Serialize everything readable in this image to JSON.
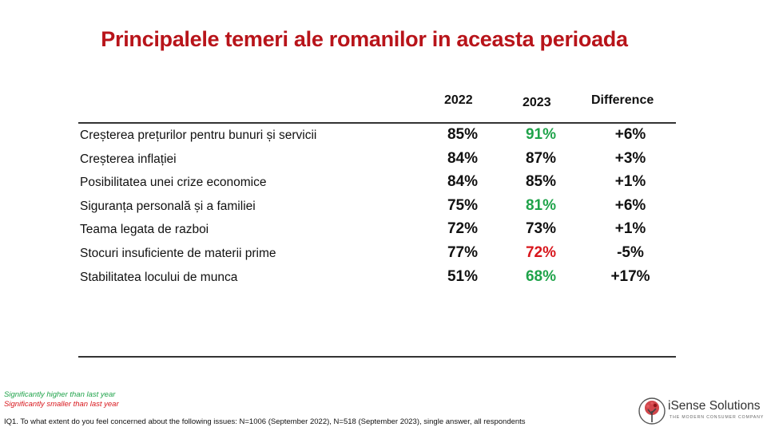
{
  "title": "Principalele temeri ale romanilor in aceasta perioada",
  "headers": {
    "y2022": "2022",
    "y2023": "2023",
    "diff": "Difference"
  },
  "colors": {
    "title": "#b8141a",
    "higher": "#1fa34a",
    "lower": "#d8161c",
    "neutral": "#111111"
  },
  "rows": [
    {
      "label": "Creșterea prețurilor pentru bunuri și servicii",
      "v2022": "85%",
      "v2023": "91%",
      "diff": "+6%",
      "trend": "higher"
    },
    {
      "label": "Creșterea inflației",
      "v2022": "84%",
      "v2023": "87%",
      "diff": "+3%",
      "trend": "neutral"
    },
    {
      "label": "Posibilitatea unei crize economice",
      "v2022": "84%",
      "v2023": "85%",
      "diff": "+1%",
      "trend": "neutral"
    },
    {
      "label": "Siguranța personală și a familiei",
      "v2022": "75%",
      "v2023": "81%",
      "diff": "+6%",
      "trend": "higher"
    },
    {
      "label": "Teama legata de razboi",
      "v2022": "72%",
      "v2023": "73%",
      "diff": "+1%",
      "trend": "neutral"
    },
    {
      "label": "Stocuri insuficiente de materii prime",
      "v2022": "77%",
      "v2023": "72%",
      "diff": "-5%",
      "trend": "lower"
    },
    {
      "label": "Stabilitatea locului de munca",
      "v2022": "51%",
      "v2023": "68%",
      "diff": "+17%",
      "trend": "higher"
    }
  ],
  "legend": {
    "higher": "Significantly higher than last year",
    "lower": "Significantly smaller than last year"
  },
  "footnote": "IQ1. To what extent do you feel concerned about the following issues: N=1006 (September 2022), N=518 (September 2023), single answer, all respondents",
  "logo": {
    "name": "iSense Solutions",
    "tagline": "THE MODERN CONSUMER COMPANY",
    "icon": "tree-logo-icon"
  }
}
